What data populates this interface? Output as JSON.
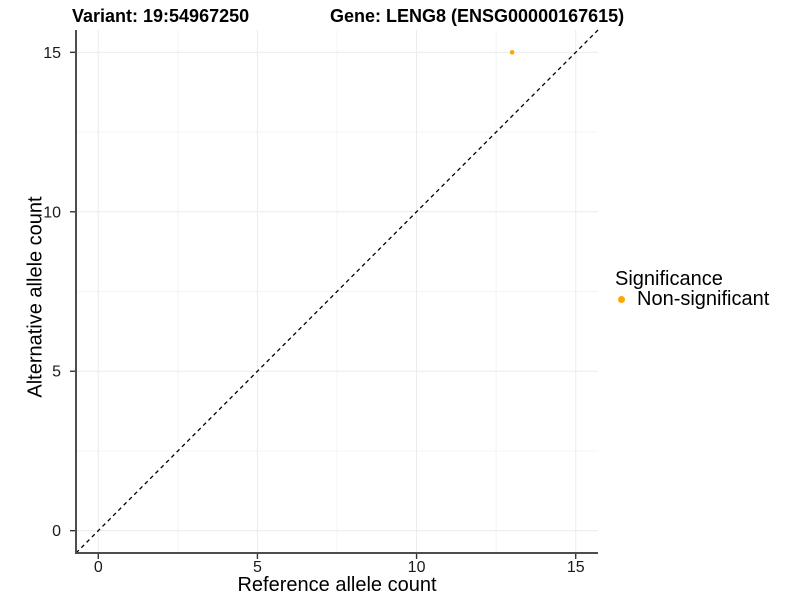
{
  "chart_data": {
    "type": "scatter",
    "titles": {
      "variant": "Variant: 19:54967250",
      "gene": "Gene: LENG8 (ENSG00000167615)"
    },
    "xlabel": "Reference allele count",
    "ylabel": "Alternative allele count",
    "xlim": [
      0,
      15
    ],
    "ylim": [
      0,
      15
    ],
    "x_major_ticks": [
      0,
      5,
      10,
      15
    ],
    "y_major_ticks": [
      0,
      5,
      10,
      15
    ],
    "x_minor_ticks": [
      2.5,
      7.5,
      12.5
    ],
    "y_minor_ticks": [
      2.5,
      7.5,
      12.5
    ],
    "grid": "major+minor",
    "identity_line": {
      "style": "dashed",
      "slope": 1,
      "intercept": 0,
      "color": "#000000"
    },
    "series": [
      {
        "name": "Non-significant",
        "color": "#FFA500",
        "points": [
          {
            "x": 13,
            "y": 15
          }
        ]
      }
    ],
    "legend": {
      "title": "Significance",
      "position": "right",
      "items": [
        {
          "label": "Non-significant",
          "color": "#FFA500"
        }
      ]
    }
  },
  "style_colors": {
    "axis_line": "#4D4D4D",
    "tick_mark": "#333333",
    "grid_major": "#EBEBEB",
    "grid_minor": "#F4F4F4",
    "panel_background": "#FFFFFF"
  }
}
